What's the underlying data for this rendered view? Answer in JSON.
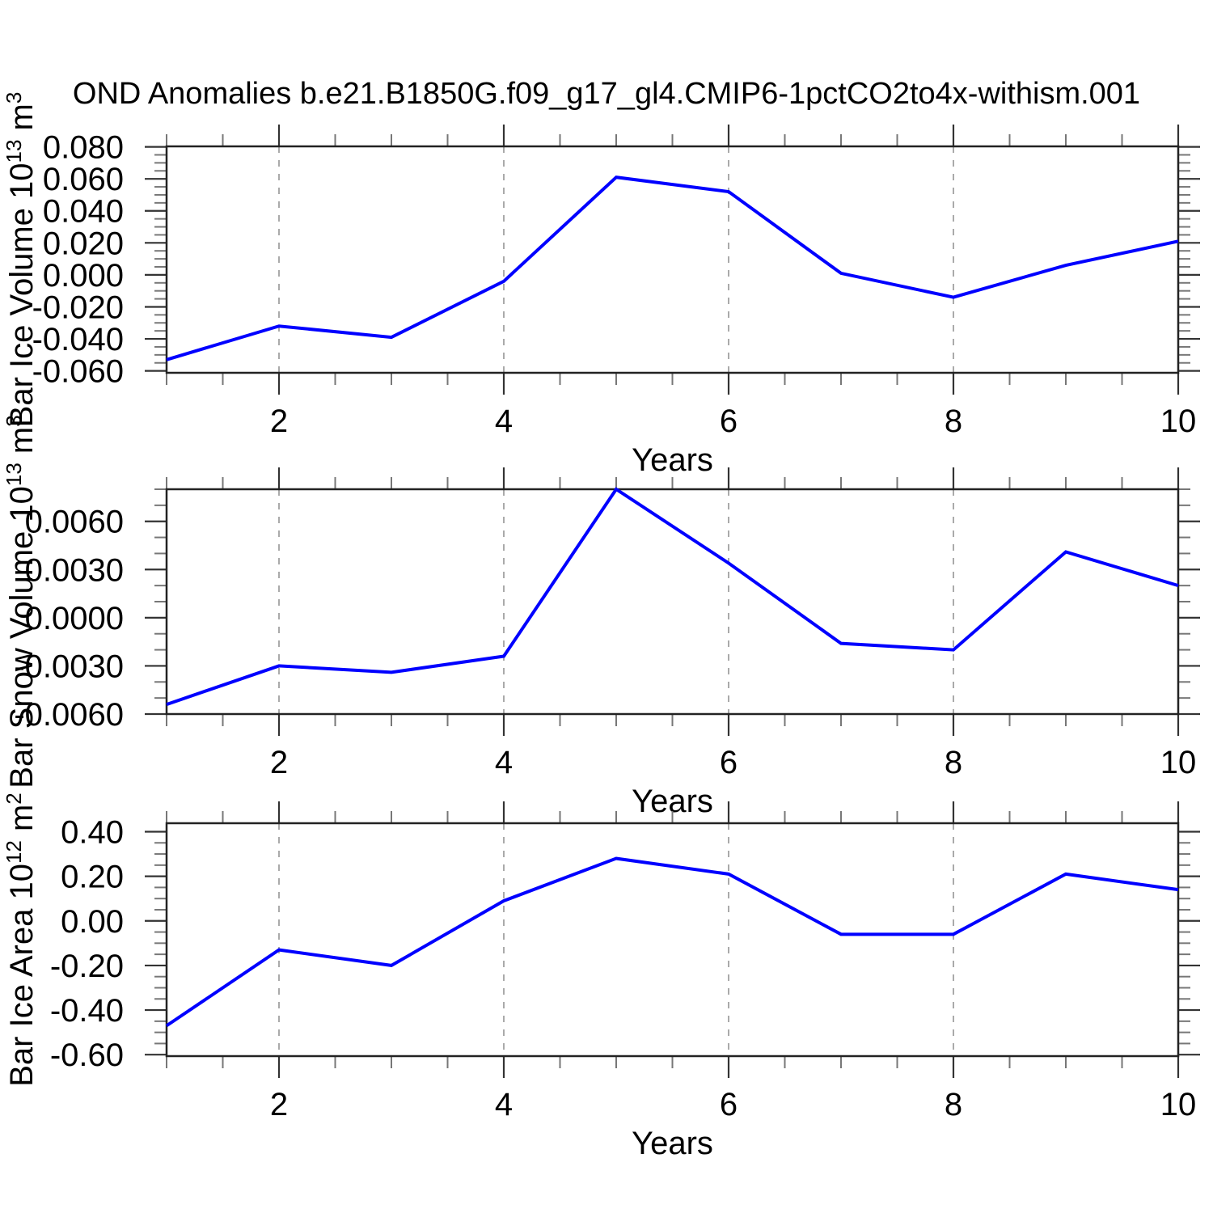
{
  "title": "OND Anomalies b.e21.B1850G.f09_g17_gl4.CMIP6-1pctCO2to4x-withism.001",
  "colors": {
    "line": "#0000ff",
    "frame": "#222222",
    "major_tick": "#333333",
    "minor_tick": "#777777",
    "grid": "#aaaaaa",
    "text": "#000000"
  },
  "chart_data": [
    {
      "type": "line",
      "name": "bar-ice-volume",
      "ylabel": "Bar Ice Volume 10^13 m^3",
      "ylabel_parts": [
        {
          "t": "Bar Ice Volume 10"
        },
        {
          "t": "13",
          "sup": true
        },
        {
          "t": " m"
        },
        {
          "t": "3",
          "sup": true
        }
      ],
      "xlabel": "Years",
      "x": [
        1,
        2,
        3,
        4,
        5,
        6,
        7,
        8,
        9,
        10
      ],
      "values": [
        -0.053,
        -0.032,
        -0.039,
        -0.004,
        0.061,
        0.052,
        0.001,
        -0.014,
        0.006,
        0.021
      ],
      "xlim": [
        1,
        10
      ],
      "ylim": [
        -0.0612,
        0.0803
      ],
      "xtick_values": [
        2,
        4,
        6,
        8,
        10
      ],
      "xtick_labels": [
        "2",
        "4",
        "6",
        "8",
        "10"
      ],
      "xminor_step": 0.5,
      "ytick_values": [
        0.08,
        0.06,
        0.04,
        0.02,
        0.0,
        -0.02,
        -0.04,
        -0.06
      ],
      "ytick_labels": [
        "0.080",
        "0.060",
        "0.040",
        "0.020",
        "0.000",
        "-0.020",
        "-0.040",
        "-0.060"
      ],
      "ymajor_step": 0.02,
      "yminor_step": 0.005,
      "grid_x": [
        2,
        4,
        6,
        8
      ]
    },
    {
      "type": "line",
      "name": "bar-snow-volume",
      "ylabel": "Bar Snow Volume 10^13 m^3",
      "ylabel_parts": [
        {
          "t": "Bar Snow Volume 10"
        },
        {
          "t": "13",
          "sup": true
        },
        {
          "t": " m"
        },
        {
          "t": "3",
          "sup": true
        }
      ],
      "xlabel": "Years",
      "x": [
        1,
        2,
        3,
        4,
        5,
        6,
        7,
        8,
        9,
        10
      ],
      "values": [
        -0.0054,
        -0.003,
        -0.0034,
        -0.0024,
        0.008,
        0.0034,
        -0.0016,
        -0.002,
        0.0041,
        0.002
      ],
      "xlim": [
        1,
        10
      ],
      "ylim": [
        -0.006,
        0.008
      ],
      "xtick_values": [
        2,
        4,
        6,
        8,
        10
      ],
      "xtick_labels": [
        "2",
        "4",
        "6",
        "8",
        "10"
      ],
      "xminor_step": 0.5,
      "ytick_values": [
        0.006,
        0.003,
        0.0,
        -0.003,
        -0.006
      ],
      "ytick_labels": [
        "0.0060",
        "0.0030",
        "0.0000",
        "-0.0030",
        "-0.0060"
      ],
      "ymajor_step": 0.003,
      "yminor_step": 0.001,
      "grid_x": [
        2,
        4,
        6,
        8
      ]
    },
    {
      "type": "line",
      "name": "bar-ice-area",
      "ylabel": "Bar Ice Area 10^12 m^2",
      "ylabel_parts": [
        {
          "t": "Bar Ice Area 10"
        },
        {
          "t": "12",
          "sup": true
        },
        {
          "t": " m"
        },
        {
          "t": "2",
          "sup": true
        }
      ],
      "xlabel": "Years",
      "x": [
        1,
        2,
        3,
        4,
        5,
        6,
        7,
        8,
        9,
        10
      ],
      "values": [
        -0.47,
        -0.13,
        -0.2,
        0.09,
        0.28,
        0.21,
        -0.06,
        -0.06,
        0.21,
        0.14
      ],
      "xlim": [
        1,
        10
      ],
      "ylim": [
        -0.6065,
        0.438
      ],
      "xtick_values": [
        2,
        4,
        6,
        8,
        10
      ],
      "xtick_labels": [
        "2",
        "4",
        "6",
        "8",
        "10"
      ],
      "xminor_step": 0.5,
      "ytick_values": [
        0.4,
        0.2,
        0.0,
        -0.2,
        -0.4,
        -0.6
      ],
      "ytick_labels": [
        "0.40",
        "0.20",
        "0.00",
        "-0.20",
        "-0.40",
        "-0.60"
      ],
      "ymajor_step": 0.2,
      "yminor_step": 0.05,
      "grid_x": [
        2,
        4,
        6,
        8
      ]
    }
  ]
}
